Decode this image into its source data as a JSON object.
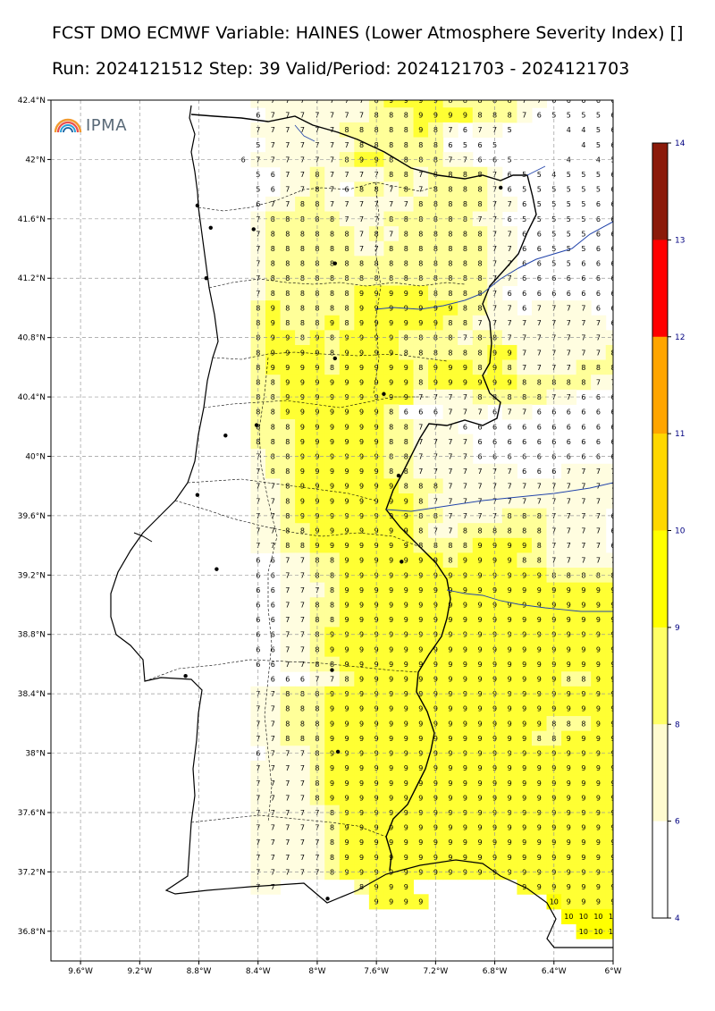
{
  "header": {
    "title_line1": "FCST DMO ECMWF Variable: HAINES (Lower Atmosphere Severity Index) []",
    "title_line2": "Run: 2024121512 Step: 39 Valid/Period: 2024121703 - 2024121703"
  },
  "logo": {
    "text": "IPMA"
  },
  "map": {
    "lat_ticks": [
      "42.4°N",
      "42°N",
      "41.6°N",
      "41.2°N",
      "40.8°N",
      "40.4°N",
      "40°N",
      "39.6°N",
      "39.2°N",
      "38.8°N",
      "38.4°N",
      "38°N",
      "37.6°N",
      "37.2°N",
      "36.8°N"
    ],
    "lon_ticks": [
      "9.6°W",
      "9.2°W",
      "8.8°W",
      "8.4°W",
      "8°W",
      "7.6°W",
      "7.2°W",
      "6.8°W",
      "6.4°W",
      "6°W"
    ],
    "lat_range": [
      36.6,
      42.4
    ],
    "lon_range": [
      -9.8,
      -6.0
    ],
    "grid": true,
    "grid_rows": [
      [
        42.4,
        "7777777789999888887766666"
      ],
      [
        42.3,
        "6777777788899998887655556"
      ],
      [
        42.2,
        "777777888889876775...4456"
      ],
      [
        42.1,
        "57777778888886565.....456"
      ],
      [
        42.0,
        "6777777899888877665...4.45"
      ],
      [
        41.9,
        "5677877778878888765545556"
      ],
      [
        41.8,
        "5677876887878888765555556"
      ],
      [
        41.7,
        "6778877777788888776555566"
      ],
      [
        41.6,
        "7888887778888887765555566"
      ],
      [
        41.5,
        "7888888787888888776655566"
      ],
      [
        41.4,
        "7888888778888888776655566"
      ],
      [
        41.3,
        "7888888888888888776655666"
      ],
      [
        41.2,
        "7888888888888888776666666"
      ],
      [
        41.1,
        "7888888999998888766666666"
      ],
      [
        41.0,
        "8988888999999988776777766"
      ],
      [
        40.9,
        "8988898999999887777777776"
      ],
      [
        40.8,
        "8998989999888878877777777"
      ],
      [
        40.7,
        "8999989999888888997777778"
      ],
      [
        40.6,
        "8999989999989998987777888"
      ],
      [
        40.5,
        "8899999999989999998888877"
      ],
      [
        40.4,
        "8899999999977778888877666"
      ],
      [
        40.3,
        "8899999998666777677666666"
      ],
      [
        40.2,
        "8889999998877766666666666"
      ],
      [
        40.1,
        "8889999998877776666666666"
      ],
      [
        40.0,
        "7889999998877776666666666"
      ],
      [
        39.9,
        "7889999998877777776667777"
      ],
      [
        39.8,
        "7789999999888777777777777"
      ],
      [
        39.7,
        "7789999999987777777777777"
      ],
      [
        39.6,
        "7789999999988777788877776"
      ],
      [
        39.5,
        "7788999999987788888877776"
      ],
      [
        39.4,
        "7788999999988889999877776"
      ],
      [
        39.3,
        "6677889999999899998877777"
      ],
      [
        39.2,
        "6677889999999999999988888"
      ],
      [
        39.1,
        "6677789999999999999999999"
      ],
      [
        39.0,
        "6677889999999999999999999"
      ],
      [
        38.9,
        "6677889999999999999999999"
      ],
      [
        38.8,
        "6677899999999999999999999"
      ],
      [
        38.7,
        "6677899999999999999999999"
      ],
      [
        38.6,
        "6677889999999999999999999"
      ],
      [
        38.5,
        "666778999999999999998899"
      ],
      [
        38.4,
        "7788899999999999999999999"
      ],
      [
        38.3,
        "7788899999999999999999999"
      ],
      [
        38.2,
        "7788899999999999999988899"
      ],
      [
        38.1,
        "7788899999999999999889999"
      ],
      [
        38.0,
        "6777899999999999999999999"
      ],
      [
        37.9,
        "7777899999999999999999999"
      ],
      [
        37.8,
        "7777899999999999999999999"
      ],
      [
        37.7,
        "7777899999999999999999999"
      ],
      [
        37.6,
        "7777789999999999999999999"
      ],
      [
        37.5,
        "7777789999999999999999999"
      ],
      [
        37.4,
        "7777789999999999999999999"
      ],
      [
        37.3,
        "7777789999999999999999999"
      ],
      [
        37.2,
        "7777789999999999999999999"
      ],
      [
        37.1,
        "77.....8999.......9999999"
      ],
      [
        37.0,
        ".......9999........109999"
      ],
      [
        36.9,
        "...................10101010"
      ],
      [
        36.8,
        "....................101010"
      ]
    ]
  },
  "colorbar": {
    "ticks": [
      "14",
      "13",
      "12",
      "11",
      "10",
      "9",
      "8",
      "6",
      "4"
    ],
    "colors": [
      "#8b1a0a",
      "#ff0000",
      "#ffa500",
      "#ffd700",
      "#ffff00",
      "#ffff66",
      "#fffbd0",
      "#ffffff"
    ]
  }
}
